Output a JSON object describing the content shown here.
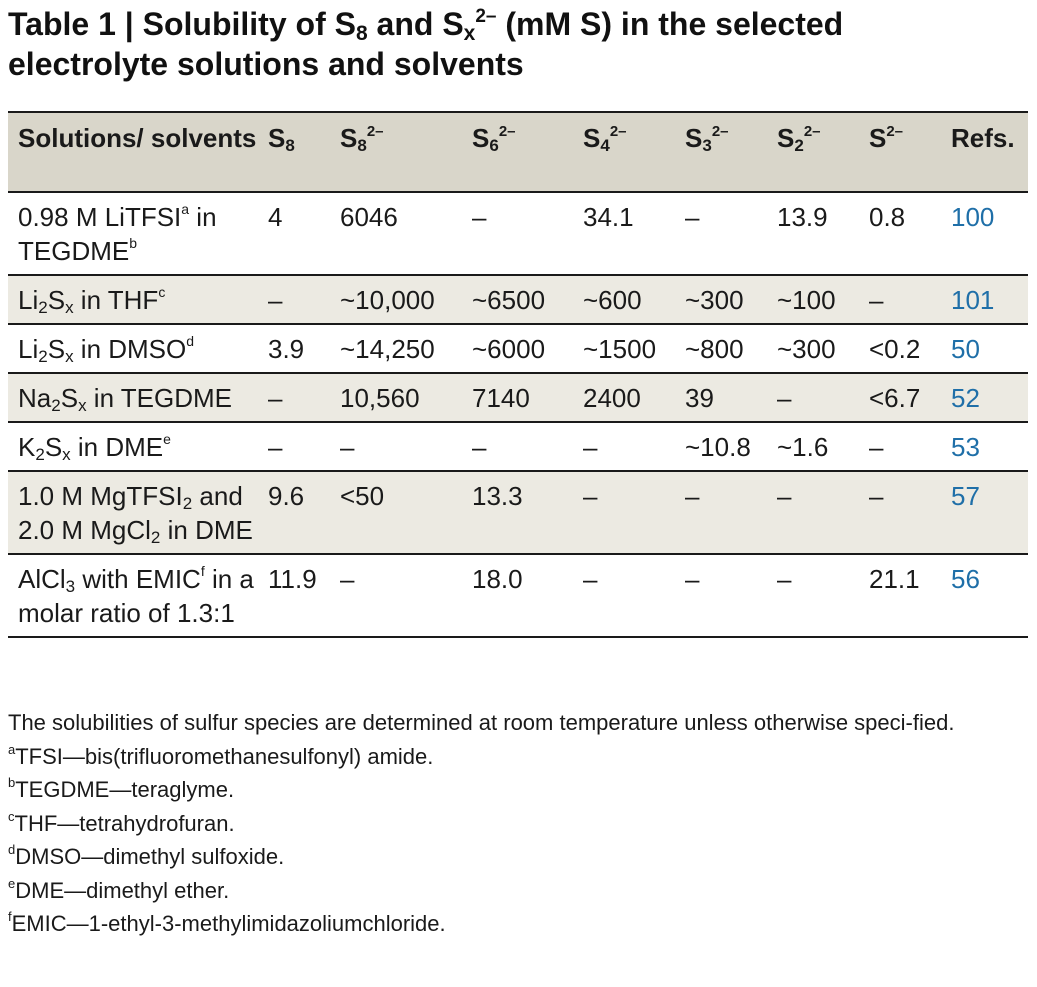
{
  "title": {
    "prefix": "Table 1 | Solubility of S",
    "s8_sub": "8",
    "mid": " and S",
    "sx_sub": "x",
    "sx_sup": "2–",
    "suffix_line1": " (mM S) in the selected",
    "line2": "electrolyte solutions and solvents"
  },
  "header": {
    "col0": "Solutions/ solvents",
    "s8": {
      "base": "S",
      "sub": "8"
    },
    "s8_2": {
      "base": "S",
      "sub": "8",
      "sup": "2–"
    },
    "s6_2": {
      "base": "S",
      "sub": "6",
      "sup": "2–"
    },
    "s4_2": {
      "base": "S",
      "sub": "4",
      "sup": "2–"
    },
    "s3_2": {
      "base": "S",
      "sub": "3",
      "sup": "2–"
    },
    "s2_2": {
      "base": "S",
      "sub": "2",
      "sup": "2–"
    },
    "s_2": {
      "base": "S",
      "sup": "2–"
    },
    "refs": "Refs."
  },
  "rows": [
    {
      "solution": {
        "a": "0.98 M LiTFSI",
        "a_fn": "a",
        "b": " in TEGDME",
        "b_fn": "b"
      },
      "values": [
        "4",
        "6046",
        "–",
        "34.1",
        "–",
        "13.9",
        "0.8"
      ],
      "ref": "100"
    },
    {
      "solution": {
        "a": "Li",
        "a_sub": "2",
        "b": "S",
        "b_sub": "x",
        "c": " in THF",
        "c_fn": "c"
      },
      "values": [
        "–",
        "~10,000",
        "~6500",
        "~600",
        "~300",
        "~100",
        "–"
      ],
      "ref": "101"
    },
    {
      "solution": {
        "a": "Li",
        "a_sub": "2",
        "b": "S",
        "b_sub": "x",
        "c": " in DMSO",
        "c_fn": "d"
      },
      "values": [
        "3.9",
        "~14,250",
        "~6000",
        "~1500",
        "~800",
        "~300",
        "<0.2"
      ],
      "ref": "50"
    },
    {
      "solution": {
        "a": "Na",
        "a_sub": "2",
        "b": "S",
        "b_sub": "x",
        "c": " in TEGDME"
      },
      "values": [
        "–",
        "10,560",
        "7140",
        "2400",
        "39",
        "–",
        "<6.7"
      ],
      "ref": "52"
    },
    {
      "solution": {
        "a": "K",
        "a_sub": "2",
        "b": "S",
        "b_sub": "x",
        "c": " in DME",
        "c_fn": "e"
      },
      "values": [
        "–",
        "–",
        "–",
        "–",
        "~10.8",
        "~1.6",
        "–"
      ],
      "ref": "53"
    },
    {
      "solution": {
        "a": "1.0 M MgTFSI",
        "a_sub": "2",
        "b": " and 2.0 M MgCl",
        "b_sub": "2",
        "c": " in DME"
      },
      "values": [
        "9.6",
        "<50",
        "13.3",
        "–",
        "–",
        "–",
        "–"
      ],
      "ref": "57"
    },
    {
      "solution": {
        "a": "AlCl",
        "a_sub": "3",
        "b": " with EMIC",
        "b_fn": "f",
        "c": " in a molar ratio of 1.3:1"
      },
      "values": [
        "11.9",
        "–",
        "18.0",
        "–",
        "–",
        "–",
        "21.1"
      ],
      "ref": "56"
    }
  ],
  "notes": {
    "general": "The solubilities of sulfur species are determined at room temperature unless otherwise speci-fied.",
    "footnotes": [
      {
        "mark": "a",
        "text": "TFSI—bis(trifluoromethanesulfonyl) amide."
      },
      {
        "mark": "b",
        "text": "TEGDME—teraglyme."
      },
      {
        "mark": "c",
        "text": "THF—tetrahydrofuran."
      },
      {
        "mark": "d",
        "text": "DMSO—dimethyl sulfoxide."
      },
      {
        "mark": "e",
        "text": "DME—dimethyl ether."
      },
      {
        "mark": "f",
        "text": "EMIC—1-ethyl-3-methylimidazoliumchloride."
      }
    ]
  }
}
